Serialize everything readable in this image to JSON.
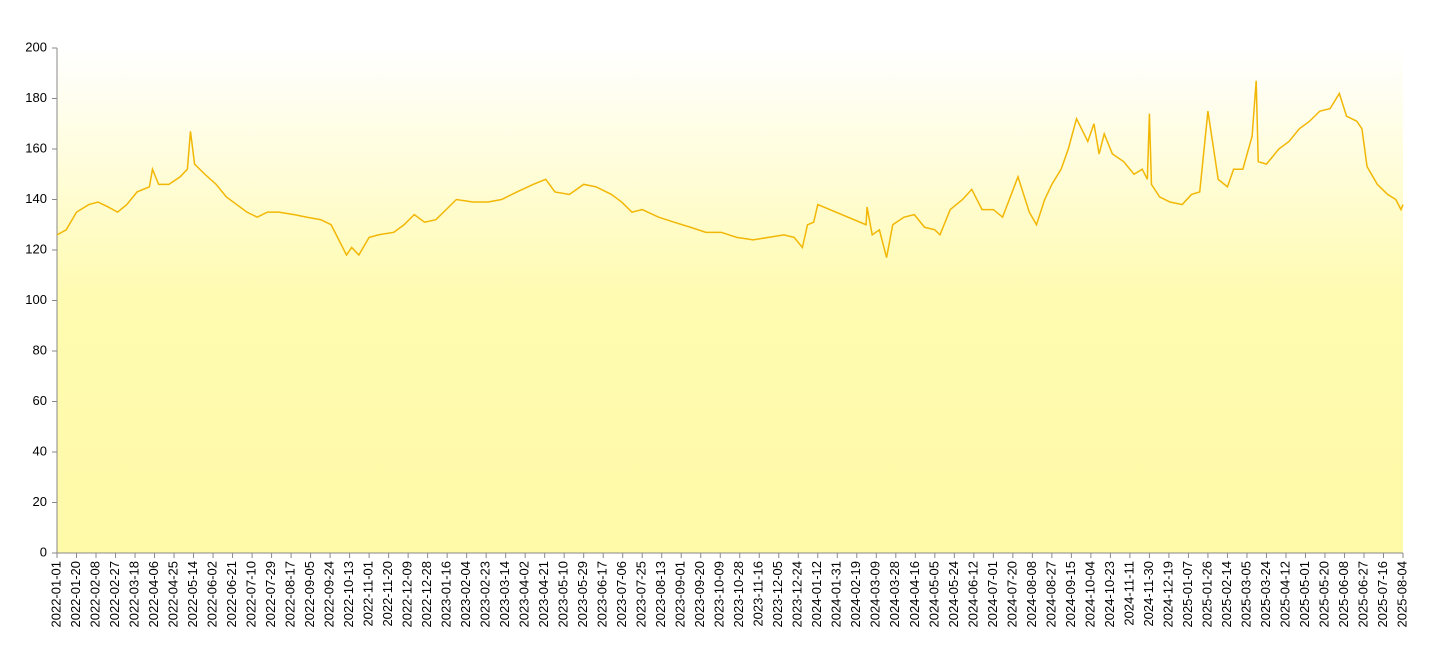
{
  "chart_data": {
    "type": "line",
    "color": "#f2b705",
    "x": [
      "2022-01-01",
      "2022-01-10",
      "2022-01-20",
      "2022-02-01",
      "2022-02-10",
      "2022-02-20",
      "2022-03-01",
      "2022-03-10",
      "2022-03-20",
      "2022-04-01",
      "2022-04-04",
      "2022-04-10",
      "2022-04-20",
      "2022-05-01",
      "2022-05-08",
      "2022-05-11",
      "2022-05-15",
      "2022-05-25",
      "2022-06-05",
      "2022-06-15",
      "2022-06-25",
      "2022-07-05",
      "2022-07-15",
      "2022-07-25",
      "2022-08-05",
      "2022-08-20",
      "2022-09-01",
      "2022-09-15",
      "2022-09-25",
      "2022-10-10",
      "2022-10-15",
      "2022-10-22",
      "2022-11-01",
      "2022-11-10",
      "2022-11-25",
      "2022-12-05",
      "2022-12-15",
      "2022-12-25",
      "2023-01-05",
      "2023-01-15",
      "2023-01-25",
      "2023-02-10",
      "2023-02-25",
      "2023-03-10",
      "2023-03-25",
      "2023-04-10",
      "2023-04-22",
      "2023-05-01",
      "2023-05-15",
      "2023-05-29",
      "2023-06-10",
      "2023-06-25",
      "2023-07-05",
      "2023-07-15",
      "2023-07-25",
      "2023-08-10",
      "2023-08-25",
      "2023-09-10",
      "2023-09-25",
      "2023-10-10",
      "2023-10-25",
      "2023-11-10",
      "2023-11-25",
      "2023-12-10",
      "2023-12-20",
      "2023-12-28",
      "2024-01-02",
      "2024-01-08",
      "2024-01-12",
      "2024-02-28",
      "2024-02-29",
      "2024-03-05",
      "2024-03-12",
      "2024-03-19",
      "2024-03-25",
      "2024-04-05",
      "2024-04-15",
      "2024-04-25",
      "2024-05-05",
      "2024-05-10",
      "2024-05-20",
      "2024-06-01",
      "2024-06-10",
      "2024-06-20",
      "2024-07-01",
      "2024-07-10",
      "2024-07-25",
      "2024-08-05",
      "2024-08-12",
      "2024-08-20",
      "2024-08-27",
      "2024-09-05",
      "2024-09-12",
      "2024-09-20",
      "2024-10-01",
      "2024-10-07",
      "2024-10-12",
      "2024-10-17",
      "2024-10-25",
      "2024-11-05",
      "2024-11-15",
      "2024-11-23",
      "2024-11-28",
      "2024-11-30",
      "2024-12-02",
      "2024-12-10",
      "2024-12-20",
      "2025-01-01",
      "2025-01-10",
      "2025-01-18",
      "2025-01-26",
      "2025-02-05",
      "2025-02-14",
      "2025-02-20",
      "2025-03-01",
      "2025-03-10",
      "2025-03-14",
      "2025-03-16",
      "2025-03-24",
      "2025-04-05",
      "2025-04-15",
      "2025-04-25",
      "2025-05-05",
      "2025-05-15",
      "2025-05-25",
      "2025-06-03",
      "2025-06-10",
      "2025-06-20",
      "2025-06-25",
      "2025-06-30",
      "2025-07-10",
      "2025-07-20",
      "2025-07-28",
      "2025-08-02",
      "2025-08-04"
    ],
    "values": [
      126,
      128,
      135,
      138,
      139,
      137,
      135,
      138,
      143,
      145,
      152,
      146,
      146,
      149,
      152,
      167,
      154,
      150,
      146,
      141,
      138,
      135,
      133,
      135,
      135,
      134,
      133,
      132,
      130,
      118,
      121,
      118,
      125,
      126,
      127,
      130,
      134,
      131,
      132,
      136,
      140,
      139,
      139,
      140,
      143,
      146,
      148,
      143,
      142,
      146,
      145,
      142,
      139,
      135,
      136,
      133,
      131,
      129,
      127,
      127,
      125,
      124,
      125,
      126,
      125,
      121,
      130,
      131,
      138,
      130,
      137,
      126,
      128,
      117,
      130,
      133,
      134,
      129,
      128,
      126,
      136,
      140,
      144,
      136,
      136,
      133,
      149,
      135,
      130,
      140,
      146,
      152,
      160,
      172,
      163,
      170,
      158,
      166,
      158,
      155,
      150,
      152,
      148,
      174,
      146,
      141,
      139,
      138,
      142,
      143,
      175,
      148,
      145,
      152,
      152,
      165,
      187,
      155,
      154,
      160,
      163,
      168,
      171,
      175,
      176,
      182,
      173,
      171,
      168,
      153,
      146,
      142,
      140,
      136,
      138
    ],
    "xlim": [
      "2022-01-01",
      "2025-08-04"
    ],
    "xticks": [
      "2022-01-01",
      "2022-01-20",
      "2022-02-08",
      "2022-02-27",
      "2022-03-18",
      "2022-04-06",
      "2022-04-25",
      "2022-05-14",
      "2022-06-02",
      "2022-06-21",
      "2022-07-10",
      "2022-07-29",
      "2022-08-17",
      "2022-09-05",
      "2022-09-24",
      "2022-10-13",
      "2022-11-01",
      "2022-11-20",
      "2022-12-09",
      "2022-12-28",
      "2023-01-16",
      "2023-02-04",
      "2023-02-23",
      "2023-03-14",
      "2023-04-02",
      "2023-04-21",
      "2023-05-10",
      "2023-05-29",
      "2023-06-17",
      "2023-07-06",
      "2023-07-25",
      "2023-08-13",
      "2023-09-01",
      "2023-09-20",
      "2023-10-09",
      "2023-10-28",
      "2023-11-16",
      "2023-12-05",
      "2023-12-24",
      "2024-01-12",
      "2024-01-31",
      "2024-02-19",
      "2024-03-09",
      "2024-03-28",
      "2024-04-16",
      "2024-05-05",
      "2024-05-24",
      "2024-06-12",
      "2024-07-01",
      "2024-07-20",
      "2024-08-08",
      "2024-08-27",
      "2024-09-15",
      "2024-10-04",
      "2024-10-23",
      "2024-11-11",
      "2024-11-30",
      "2024-12-19",
      "2025-01-07",
      "2025-01-26",
      "2025-02-14",
      "2025-03-05",
      "2025-03-24",
      "2025-04-12",
      "2025-05-01",
      "2025-05-20",
      "2025-06-08",
      "2025-06-27",
      "2025-07-16",
      "2025-08-04"
    ],
    "ylim": [
      0,
      200
    ],
    "yticks": [
      0,
      20,
      40,
      60,
      80,
      100,
      120,
      140,
      160,
      180,
      200
    ]
  }
}
